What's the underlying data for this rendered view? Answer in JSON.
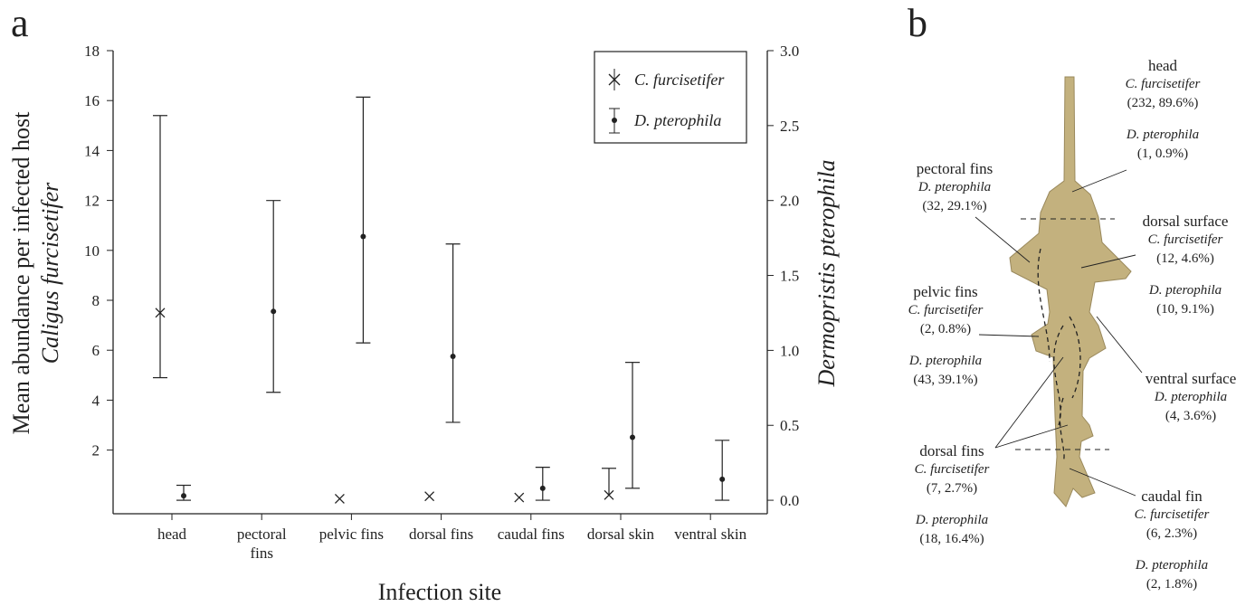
{
  "chart_data": {
    "type": "errorbar",
    "panel": "a",
    "x_label": "Infection site",
    "y_label": "Mean abundance per infected host",
    "y_sublabel": "Caligus furcisetifer",
    "y2_label": "Dermopristis pterophila",
    "categories": [
      "head",
      "pectoral fins",
      "pelvic fins",
      "dorsal fins",
      "caudal fins",
      "dorsal skin",
      "ventral skin"
    ],
    "ylim": [
      -0.55,
      18
    ],
    "yticks": [
      2,
      4,
      6,
      8,
      10,
      12,
      14,
      16,
      18
    ],
    "y2lim": [
      -0.09,
      3.0
    ],
    "y2ticks": [
      {
        "value": 0,
        "label": "0.0"
      },
      0.5,
      {
        "value": 1,
        "label": "1.0"
      },
      1.5,
      {
        "value": 2,
        "label": "2.0"
      },
      2.5,
      {
        "value": 3,
        "label": "3.0"
      }
    ],
    "legend": "upper right",
    "series": [
      {
        "name": "C. furcisetifer",
        "color": "#222222",
        "marker": "x",
        "axis": "y",
        "values": [
          7.5,
          null,
          0.05,
          0.15,
          0.1,
          0.2,
          null
        ],
        "lower": [
          4.9,
          null,
          null,
          null,
          null,
          null,
          null
        ],
        "upper": [
          15.4,
          null,
          null,
          null,
          null,
          1.27,
          null
        ]
      },
      {
        "name": "D. pterophila",
        "color": "#222222",
        "marker": "dot",
        "axis": "y2",
        "values": [
          0.03,
          1.26,
          1.76,
          0.96,
          0.08,
          0.42,
          0.14
        ],
        "lower": [
          0.0,
          0.72,
          1.05,
          0.52,
          0.0,
          0.08,
          0.0
        ],
        "upper": [
          0.1,
          2.0,
          2.69,
          1.71,
          0.22,
          0.92,
          0.4
        ]
      }
    ]
  },
  "panel_b": {
    "letter": "b",
    "sites": [
      {
        "name": "head",
        "entries": [
          {
            "species": "C. furcisetifer",
            "count": "(232, 89.6%)"
          },
          {
            "species": "D. pterophila",
            "count": "(1, 0.9%)"
          }
        ]
      },
      {
        "name": "pectoral fins",
        "entries": [
          {
            "species": "D. pterophila",
            "count": "(32, 29.1%)"
          }
        ]
      },
      {
        "name": "dorsal surface",
        "entries": [
          {
            "species": "C. furcisetifer",
            "count": "(12, 4.6%)"
          },
          {
            "species": "D. pterophila",
            "count": "(10, 9.1%)"
          }
        ]
      },
      {
        "name": "pelvic fins",
        "entries": [
          {
            "species": "C. furcisetifer",
            "count": "(2, 0.8%)"
          },
          {
            "species": "D. pterophila",
            "count": "(43, 39.1%)"
          }
        ]
      },
      {
        "name": "ventral surface",
        "entries": [
          {
            "species": "D. pterophila",
            "count": "(4, 3.6%)"
          }
        ]
      },
      {
        "name": "dorsal fins",
        "entries": [
          {
            "species": "C. furcisetifer",
            "count": "(7, 2.7%)"
          },
          {
            "species": "D. pterophila",
            "count": "(18, 16.4%)"
          }
        ]
      },
      {
        "name": "caudal fin",
        "entries": [
          {
            "species": "C. furcisetifer",
            "count": "(6, 2.3%)"
          },
          {
            "species": "D. pterophila",
            "count": "(2, 1.8%)"
          }
        ]
      }
    ]
  }
}
